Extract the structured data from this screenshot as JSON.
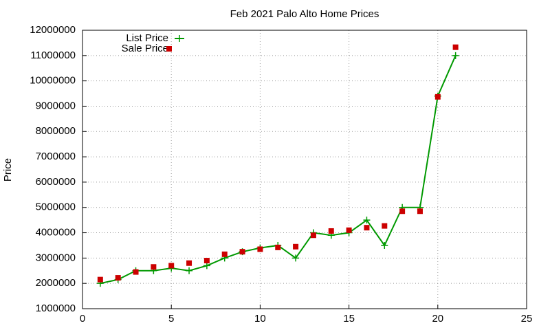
{
  "chart_data": {
    "type": "line",
    "title": "Feb 2021 Palo Alto Home Prices",
    "y_label": "Price",
    "x": [
      1,
      2,
      3,
      4,
      5,
      6,
      7,
      8,
      9,
      10,
      11,
      12,
      13,
      14,
      15,
      16,
      17,
      18,
      19,
      20,
      21
    ],
    "series": [
      {
        "name": "List Price",
        "color": "#009900",
        "style": "linespoints",
        "values": [
          2000000,
          2150000,
          2500000,
          2500000,
          2600000,
          2500000,
          2700000,
          3000000,
          3250000,
          3400000,
          3500000,
          3000000,
          4000000,
          3900000,
          4000000,
          4500000,
          3500000,
          5000000,
          5000000,
          9400000,
          11000000
        ]
      },
      {
        "name": "Sale Price",
        "color": "#cc0000",
        "style": "points",
        "values": [
          2150000,
          2220000,
          2450000,
          2650000,
          2700000,
          2800000,
          2900000,
          3150000,
          3250000,
          3350000,
          3420000,
          3450000,
          3900000,
          4070000,
          4100000,
          4200000,
          4270000,
          4850000,
          4850000,
          9370000,
          11330000
        ]
      }
    ],
    "xlim": [
      0,
      25
    ],
    "xticks": [
      0,
      5,
      10,
      15,
      20,
      25
    ],
    "ylim": [
      1000000,
      12000000
    ],
    "yticks": [
      1000000,
      2000000,
      3000000,
      4000000,
      5000000,
      6000000,
      7000000,
      8000000,
      9000000,
      10000000,
      11000000,
      12000000
    ],
    "grid": true,
    "legend": "top-left"
  }
}
